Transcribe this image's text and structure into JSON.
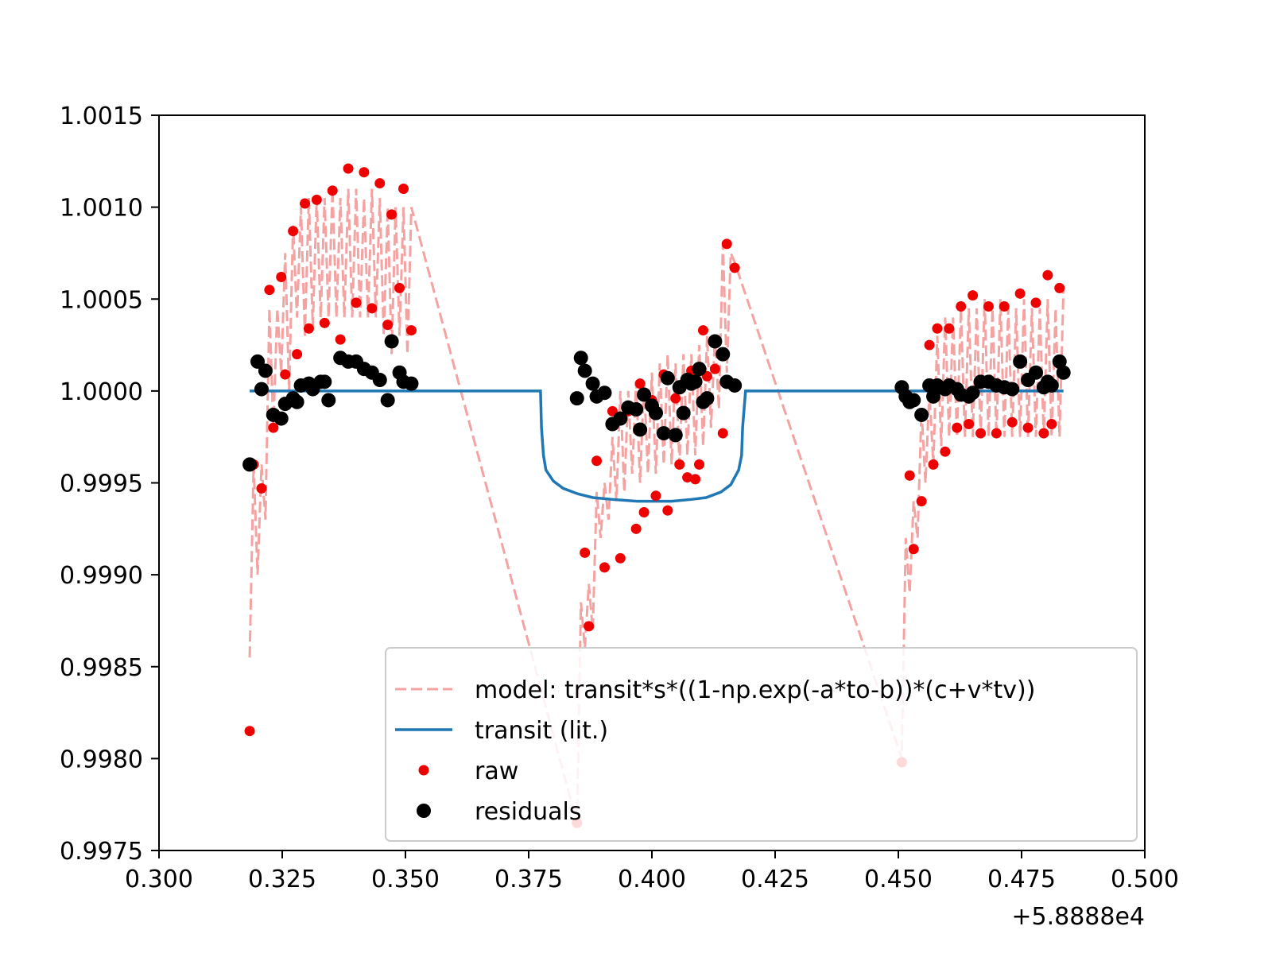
{
  "chart_data": {
    "type": "scatter",
    "title": "",
    "xlabel": "",
    "ylabel": "",
    "x_offset_label": "+5.8888e4",
    "xlim": [
      0.3,
      0.5
    ],
    "ylim": [
      0.9975,
      1.0015
    ],
    "x_ticks": [
      "0.300",
      "0.325",
      "0.350",
      "0.375",
      "0.400",
      "0.425",
      "0.450",
      "0.475",
      "0.500"
    ],
    "y_ticks": [
      "0.9975",
      "0.9980",
      "0.9985",
      "0.9990",
      "0.9995",
      "1.0000",
      "1.0005",
      "1.0010",
      "1.0015"
    ],
    "grid": false,
    "legend_position": "lower-right",
    "colors": {
      "model": "#f4a3a3",
      "transit": "#1f77b4",
      "raw": "#ee0000",
      "residuals": "#000000"
    },
    "series": [
      {
        "name": "model: transit*s*((1-np.exp(-a*to-b))*(c+v*tv))",
        "style": "dashed-line",
        "x": [
          0.3184,
          0.3192,
          0.32,
          0.3208,
          0.3216,
          0.3224,
          0.3232,
          0.324,
          0.3248,
          0.3256,
          0.3264,
          0.3272,
          0.328,
          0.3288,
          0.3296,
          0.3304,
          0.3312,
          0.332,
          0.3328,
          0.3336,
          0.3344,
          0.3352,
          0.336,
          0.3368,
          0.3376,
          0.3384,
          0.3392,
          0.34,
          0.3408,
          0.3416,
          0.3424,
          0.3432,
          0.344,
          0.3448,
          0.3456,
          0.3464,
          0.3472,
          0.348,
          0.3488,
          0.3496,
          0.3504,
          0.3512,
          0.3848,
          0.3856,
          0.3864,
          0.3872,
          0.388,
          0.3888,
          0.3896,
          0.3904,
          0.3912,
          0.392,
          0.3928,
          0.3936,
          0.3944,
          0.3952,
          0.396,
          0.3968,
          0.3976,
          0.3984,
          0.3992,
          0.4,
          0.4008,
          0.4016,
          0.4024,
          0.4032,
          0.404,
          0.4048,
          0.4056,
          0.4064,
          0.4072,
          0.408,
          0.4088,
          0.4096,
          0.4104,
          0.4112,
          0.412,
          0.4128,
          0.4136,
          0.4144,
          0.4152,
          0.416,
          0.4168,
          0.4507,
          0.4515,
          0.4523,
          0.4531,
          0.4539,
          0.4547,
          0.4555,
          0.4563,
          0.4571,
          0.4579,
          0.4587,
          0.4595,
          0.4603,
          0.4611,
          0.4619,
          0.4627,
          0.4635,
          0.4643,
          0.4651,
          0.4659,
          0.4667,
          0.4675,
          0.4683,
          0.4691,
          0.4699,
          0.4707,
          0.4715,
          0.4723,
          0.4731,
          0.4739,
          0.4747,
          0.4755,
          0.4763,
          0.4771,
          0.4779,
          0.4787,
          0.4795,
          0.4803,
          0.4811,
          0.4819,
          0.4827,
          0.4835
        ],
        "y": [
          0.99855,
          0.9996,
          0.999,
          0.9996,
          0.9993,
          1.00045,
          0.9998,
          1.00045,
          1.0001,
          1.00075,
          1.0,
          1.0009,
          1.0004,
          1.001,
          1.0003,
          1.00105,
          1.00035,
          1.00105,
          1.0004,
          1.00105,
          1.0004,
          1.0011,
          1.0004,
          1.00105,
          1.0004,
          1.0011,
          1.0004,
          1.0011,
          1.0004,
          1.00105,
          1.0004,
          1.0011,
          1.0004,
          1.00105,
          1.0003,
          1.001,
          1.0002,
          1.001,
          1.0003,
          1.001,
          1.0002,
          1.001,
          0.99765,
          0.99885,
          0.9986,
          0.99895,
          0.9987,
          0.99945,
          0.9992,
          0.9995,
          0.9993,
          0.99975,
          0.9994,
          1.0,
          0.99945,
          1.0,
          0.99955,
          1.00005,
          0.9995,
          1.00005,
          0.99955,
          1.0001,
          0.99955,
          1.00015,
          0.9996,
          1.0002,
          0.9996,
          1.00015,
          0.9996,
          1.0002,
          0.99965,
          1.0002,
          0.99965,
          1.00025,
          0.9997,
          1.0003,
          0.9998,
          1.0003,
          0.9999,
          1.0008,
          1.0001,
          1.00075,
          1.0007,
          0.998,
          0.9992,
          0.9989,
          0.9994,
          0.9992,
          0.9999,
          0.9995,
          1.0,
          0.9996,
          1.0003,
          0.9997,
          1.0004,
          0.99975,
          1.0004,
          0.99975,
          1.00045,
          0.99975,
          1.00045,
          0.99975,
          1.00045,
          0.99975,
          1.0005,
          0.99975,
          1.00045,
          0.99975,
          1.0005,
          0.99975,
          1.00045,
          0.99975,
          1.00045,
          0.99975,
          1.0005,
          0.99975,
          1.00045,
          0.99975,
          1.00045,
          0.99975,
          1.0005,
          0.99975,
          1.00045,
          0.99975,
          1.00055
        ]
      },
      {
        "name": "transit (lit.)",
        "style": "solid-line",
        "x": [
          0.3184,
          0.3774,
          0.3776,
          0.378,
          0.3785,
          0.38,
          0.382,
          0.385,
          0.388,
          0.392,
          0.397,
          0.4,
          0.404,
          0.408,
          0.411,
          0.414,
          0.416,
          0.4176,
          0.4182,
          0.4184,
          0.419,
          0.4835
        ],
        "y": [
          1.0,
          1.0,
          0.9998,
          0.99965,
          0.99957,
          0.99951,
          0.99947,
          0.99944,
          0.99942,
          0.99941,
          0.9994,
          0.9994,
          0.9994,
          0.99941,
          0.99942,
          0.99945,
          0.99949,
          0.99957,
          0.99965,
          0.9998,
          1.0,
          1.0
        ]
      },
      {
        "name": "raw",
        "style": "small-marker",
        "x": [
          0.3184,
          0.3192,
          0.3208,
          0.3224,
          0.3232,
          0.3248,
          0.3256,
          0.3272,
          0.328,
          0.3296,
          0.3304,
          0.332,
          0.3336,
          0.3352,
          0.3368,
          0.3384,
          0.34,
          0.3416,
          0.3432,
          0.3448,
          0.3464,
          0.3472,
          0.3488,
          0.3496,
          0.3512,
          0.3848,
          0.3864,
          0.3872,
          0.3888,
          0.3904,
          0.392,
          0.3936,
          0.3952,
          0.3968,
          0.3976,
          0.3984,
          0.4,
          0.4008,
          0.4024,
          0.4032,
          0.4048,
          0.4056,
          0.4064,
          0.4072,
          0.408,
          0.4088,
          0.4096,
          0.4104,
          0.4112,
          0.4128,
          0.4144,
          0.4152,
          0.4168,
          0.4507,
          0.4523,
          0.4531,
          0.4547,
          0.4563,
          0.4571,
          0.4579,
          0.4595,
          0.4603,
          0.4619,
          0.4627,
          0.4643,
          0.4651,
          0.4667,
          0.4683,
          0.4699,
          0.4715,
          0.4731,
          0.4747,
          0.4763,
          0.4779,
          0.4795,
          0.4803,
          0.4811,
          0.4827
        ],
        "y": [
          0.99815,
          0.9996,
          0.99947,
          1.00055,
          0.9998,
          1.00062,
          1.00009,
          1.00087,
          1.0002,
          1.00102,
          1.00034,
          1.00104,
          1.00037,
          1.00109,
          1.00028,
          1.00121,
          1.00048,
          1.00119,
          1.00045,
          1.00113,
          1.00036,
          1.00096,
          1.00056,
          1.0011,
          1.00033,
          0.99765,
          0.99912,
          0.99872,
          0.99962,
          0.99904,
          0.99989,
          0.99909,
          0.99989,
          0.99925,
          1.00004,
          0.99934,
          0.99995,
          0.99943,
          1.00009,
          0.99935,
          0.99996,
          0.9996,
          1.00004,
          0.99953,
          1.00011,
          0.99952,
          0.9996,
          1.00033,
          1.00008,
          1.00012,
          0.99977,
          1.0008,
          1.00067,
          0.99798,
          0.99954,
          0.99914,
          0.9994,
          1.00025,
          0.9996,
          1.00034,
          0.99967,
          1.00034,
          0.9998,
          1.00046,
          0.99982,
          1.00052,
          0.99977,
          1.00046,
          0.99977,
          1.00046,
          0.99983,
          1.00053,
          0.9998,
          1.00048,
          0.99977,
          1.00063,
          0.99982,
          1.00056
        ]
      },
      {
        "name": "residuals",
        "style": "large-marker",
        "x": [
          0.3184,
          0.32,
          0.3208,
          0.3216,
          0.3232,
          0.3248,
          0.3256,
          0.3272,
          0.328,
          0.3288,
          0.3304,
          0.3312,
          0.3328,
          0.3336,
          0.3344,
          0.3368,
          0.3384,
          0.34,
          0.3416,
          0.3432,
          0.3448,
          0.3464,
          0.3472,
          0.3488,
          0.3496,
          0.3512,
          0.3848,
          0.3856,
          0.3864,
          0.388,
          0.3888,
          0.3904,
          0.392,
          0.3936,
          0.3952,
          0.3968,
          0.3976,
          0.3984,
          0.4,
          0.4008,
          0.4024,
          0.4032,
          0.4048,
          0.4056,
          0.4064,
          0.4072,
          0.408,
          0.4088,
          0.4096,
          0.4104,
          0.4112,
          0.4128,
          0.4144,
          0.4152,
          0.4168,
          0.4507,
          0.4515,
          0.4523,
          0.4531,
          0.4547,
          0.4563,
          0.4571,
          0.4579,
          0.4595,
          0.4603,
          0.4619,
          0.4627,
          0.4643,
          0.4651,
          0.4667,
          0.4683,
          0.4699,
          0.4715,
          0.4731,
          0.4747,
          0.4763,
          0.4779,
          0.4795,
          0.4803,
          0.4811,
          0.4827,
          0.4835
        ],
        "y": [
          0.9996,
          1.00016,
          1.00001,
          1.00011,
          0.99987,
          0.99985,
          0.99993,
          0.99996,
          0.99994,
          1.00003,
          1.00004,
          1.00001,
          1.00005,
          1.00005,
          0.99995,
          1.00018,
          1.00016,
          1.00016,
          1.00012,
          1.0001,
          1.00006,
          0.99995,
          1.00027,
          1.0001,
          1.00005,
          1.00004,
          0.99996,
          1.00018,
          1.00011,
          1.00004,
          0.99997,
          0.99999,
          0.99982,
          0.99985,
          0.99991,
          0.9999,
          0.99979,
          0.99998,
          0.99992,
          0.99988,
          0.99977,
          1.00007,
          0.99976,
          1.00002,
          0.99988,
          1.00006,
          1.00004,
          1.00005,
          1.00012,
          0.99994,
          0.99996,
          1.00027,
          1.0002,
          1.00005,
          1.00003,
          1.00002,
          0.99997,
          0.99994,
          0.99995,
          0.99987,
          1.00003,
          0.99997,
          1.00003,
          1.00001,
          1.00003,
          1.00001,
          0.99998,
          0.99997,
          0.99999,
          1.00005,
          1.00005,
          1.00003,
          1.00002,
          1.00001,
          1.00016,
          1.00006,
          1.0001,
          1.00002,
          1.00005,
          1.00003,
          1.00016,
          1.0001
        ]
      }
    ]
  }
}
